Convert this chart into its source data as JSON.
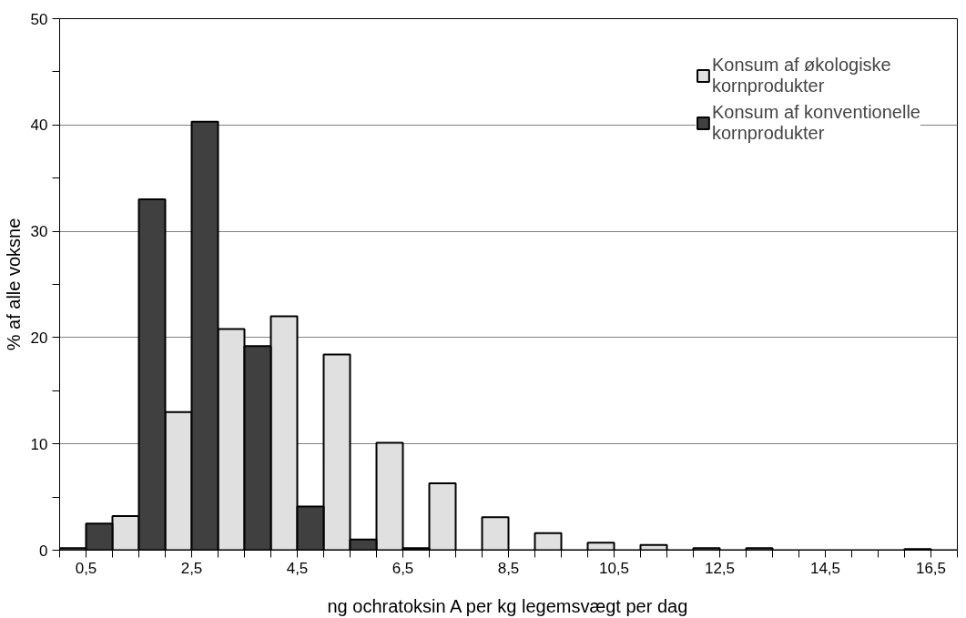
{
  "chart_data": {
    "type": "bar",
    "xlabel": "ng ochratoksin A per kg legemsvægt per dag",
    "ylabel": "% af alle voksne",
    "categories": [
      "0,5",
      null,
      "2,5",
      null,
      "4,5",
      null,
      "6,5",
      null,
      "8,5",
      null,
      "10,5",
      null,
      "12,5",
      null,
      "14,5",
      null,
      "16,5"
    ],
    "series": [
      {
        "name": "Konsum af økologiske kornprodukter",
        "color": "#e0e0e0",
        "values": [
          0.2,
          3.2,
          13,
          20.8,
          22,
          18.4,
          10.1,
          6.3,
          3.1,
          1.6,
          0.7,
          0.5,
          0.2,
          0.2,
          0,
          0,
          0.1
        ]
      },
      {
        "name": "Konsum af konventionelle kornprodukter",
        "color": "#404040",
        "values": [
          2.5,
          33,
          40.3,
          19.2,
          4.1,
          1.0,
          0.2,
          0,
          0,
          0,
          0,
          0,
          0,
          0,
          0,
          0,
          0
        ]
      }
    ],
    "ylim": [
      0,
      50
    ],
    "yticks": [
      0,
      {
        "value": 5,
        "label": null
      },
      10,
      {
        "value": 15,
        "label": null
      },
      20,
      {
        "value": 25,
        "label": null
      },
      30,
      {
        "value": 35,
        "label": null
      },
      40,
      {
        "value": 45,
        "label": null
      },
      50
    ],
    "grid": "y",
    "legend": "top right"
  }
}
